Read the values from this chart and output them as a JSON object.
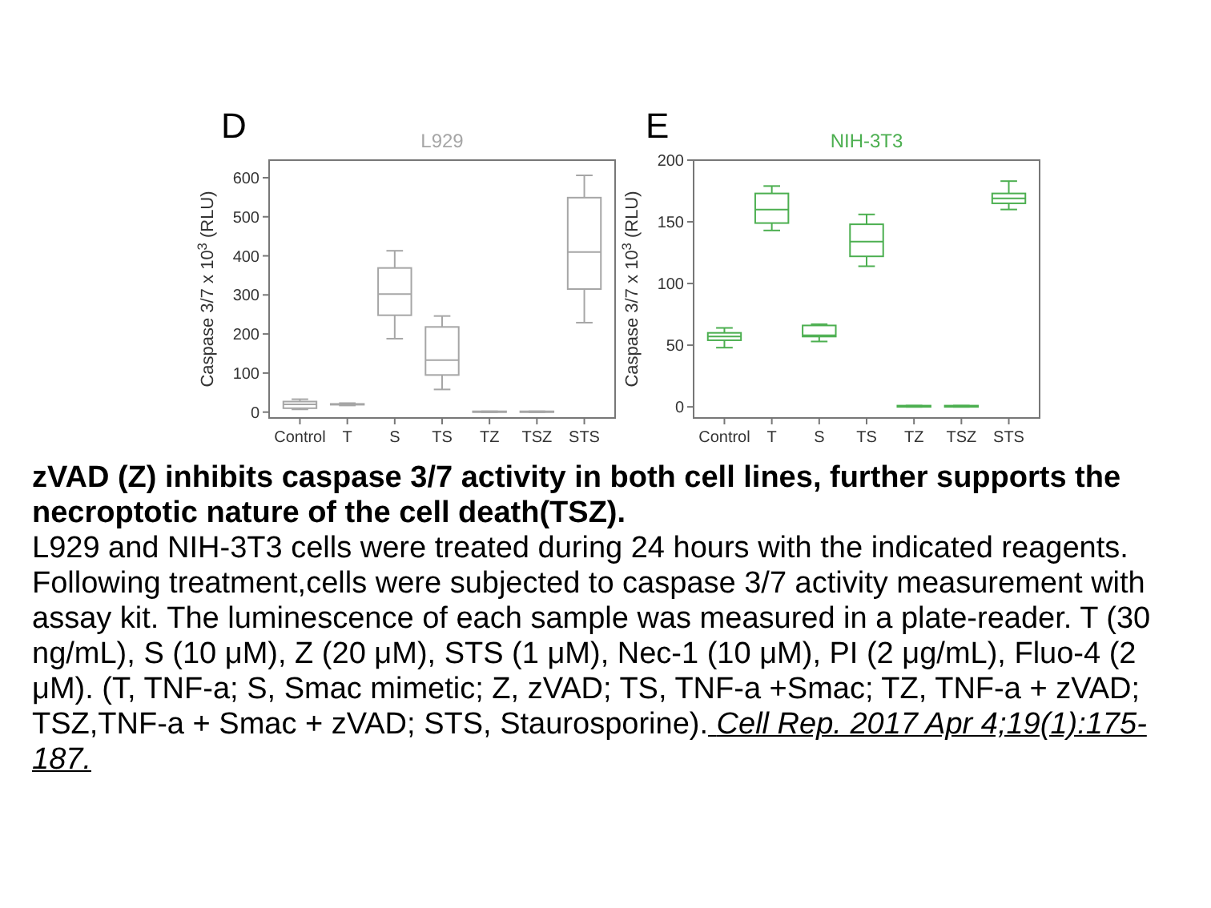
{
  "chart_data": [
    {
      "type": "box",
      "title": "L929",
      "ylabel": "Caspase 3/7  x 10$^{3}$ (RLU)",
      "annotations": [
        "D"
      ],
      "categories": [
        "Control",
        "T",
        "S",
        "TS",
        "TZ",
        "TSZ",
        "STS"
      ],
      "color": "#a6a6a6",
      "ylim": [
        -15,
        645
      ],
      "yticks": [
        0,
        100,
        200,
        300,
        400,
        500,
        600
      ],
      "grid": false,
      "boxes": [
        {
          "low": 7,
          "q1": 10,
          "median": 20,
          "q3": 27,
          "high": 33
        },
        {
          "low": 17,
          "q1": 19,
          "median": 20,
          "q3": 21,
          "high": 23
        },
        {
          "low": 188,
          "q1": 248,
          "median": 302,
          "q3": 369,
          "high": 413
        },
        {
          "low": 58,
          "q1": 95,
          "median": 133,
          "q3": 218,
          "high": 246
        },
        {
          "low": 0,
          "q1": 1,
          "median": 1,
          "q3": 2,
          "high": 2
        },
        {
          "low": 0,
          "q1": 1,
          "median": 1,
          "q3": 2,
          "high": 2
        },
        {
          "low": 229,
          "q1": 315,
          "median": 410,
          "q3": 549,
          "high": 606
        }
      ]
    },
    {
      "type": "box",
      "title": "NIH-3T3",
      "ylabel": "Caspase 3/7  x 10$^{3}$ (RLU)",
      "annotations": [
        "E"
      ],
      "categories": [
        "Control",
        "T",
        "S",
        "TS",
        "TZ",
        "TSZ",
        "STS"
      ],
      "color": "#4caf50",
      "ylim": [
        -9,
        200
      ],
      "yticks": [
        0,
        50,
        100,
        150,
        200
      ],
      "grid": false,
      "boxes": [
        {
          "low": 48,
          "q1": 54,
          "median": 57,
          "q3": 60,
          "high": 64
        },
        {
          "low": 143,
          "q1": 149,
          "median": 160,
          "q3": 173,
          "high": 179
        },
        {
          "low": 53,
          "q1": 57,
          "median": 58,
          "q3": 66,
          "high": 67
        },
        {
          "low": 114,
          "q1": 122,
          "median": 134,
          "q3": 148,
          "high": 156
        },
        {
          "low": 0,
          "q1": 0,
          "median": 0.5,
          "q3": 1,
          "high": 1
        },
        {
          "low": 0,
          "q1": 0,
          "median": 0.5,
          "q3": 1,
          "high": 1
        },
        {
          "low": 160,
          "q1": 165,
          "median": 169,
          "q3": 173,
          "high": 183
        }
      ]
    },
    {
      "type": "other",
      "title": "zVAD (Z) inhibits caspase 3/7 activity in both cell lines, further supports the necroptotic nature of the cell death(TSZ).",
      "annotations": [
        "L929 and NIH-3T3 cells were treated during 24 hours with the indicated reagents. Following treatment,cells were subjected to caspase 3/7 activity measurement with assay kit. The luminescence of each sample was measured in a plate-reader. T (30 ng/mL), S (10 μM), Z (20 μM), STS (1 μM), Nec-1 (10 μM), PI (2 μg/mL), Fluo-4 (2 μM). (T, TNF-a; S, Smac mimetic; Z, zVAD; TS, TNF-a +Smac; TZ, TNF-a + zVAD; TSZ,TNF-a + Smac + zVAD; STS, Staurosporine).",
        "Cell Rep. 2017 Apr 4;19(1):175-187."
      ]
    }
  ]
}
